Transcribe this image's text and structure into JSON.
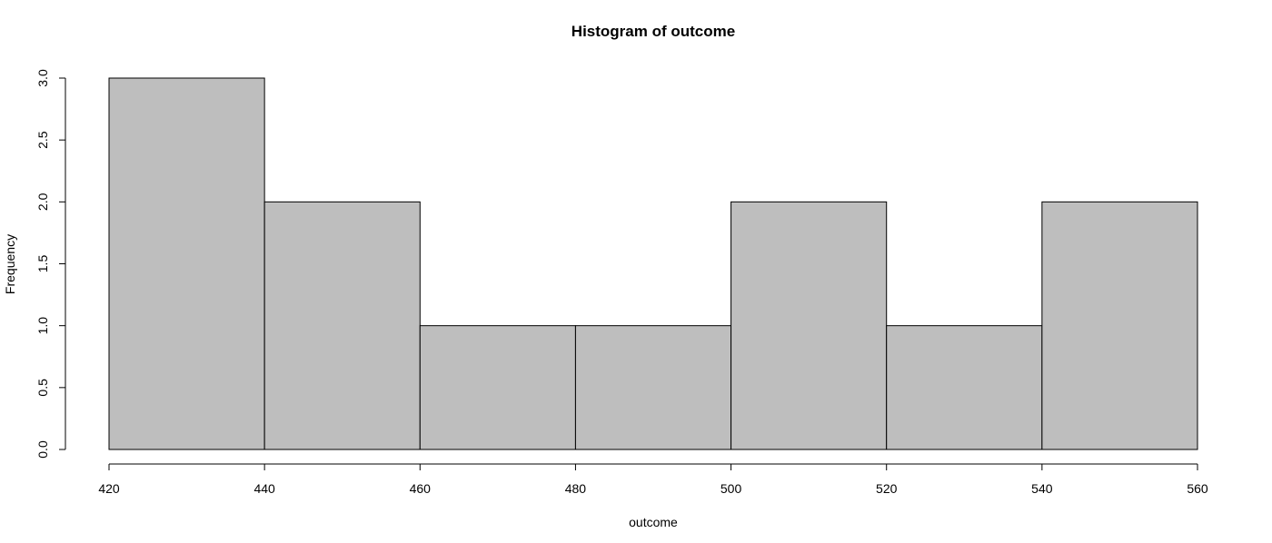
{
  "chart_data": {
    "type": "bar",
    "title": "Histogram of outcome",
    "xlabel": "outcome",
    "ylabel": "Frequency",
    "bins": [
      {
        "start": 420,
        "end": 440,
        "count": 3
      },
      {
        "start": 440,
        "end": 460,
        "count": 2
      },
      {
        "start": 460,
        "end": 480,
        "count": 1
      },
      {
        "start": 480,
        "end": 500,
        "count": 1
      },
      {
        "start": 500,
        "end": 520,
        "count": 2
      },
      {
        "start": 520,
        "end": 540,
        "count": 1
      },
      {
        "start": 540,
        "end": 560,
        "count": 2
      }
    ],
    "x_ticks": [
      "420",
      "440",
      "460",
      "480",
      "500",
      "520",
      "540",
      "560"
    ],
    "y_ticks": [
      "0.0",
      "0.5",
      "1.0",
      "1.5",
      "2.0",
      "2.5",
      "3.0"
    ],
    "xlim": [
      420,
      560
    ],
    "ylim": [
      0,
      3
    ],
    "grid": false,
    "colors": {
      "bar_fill": "#bebebe",
      "bar_stroke": "#000000"
    }
  }
}
